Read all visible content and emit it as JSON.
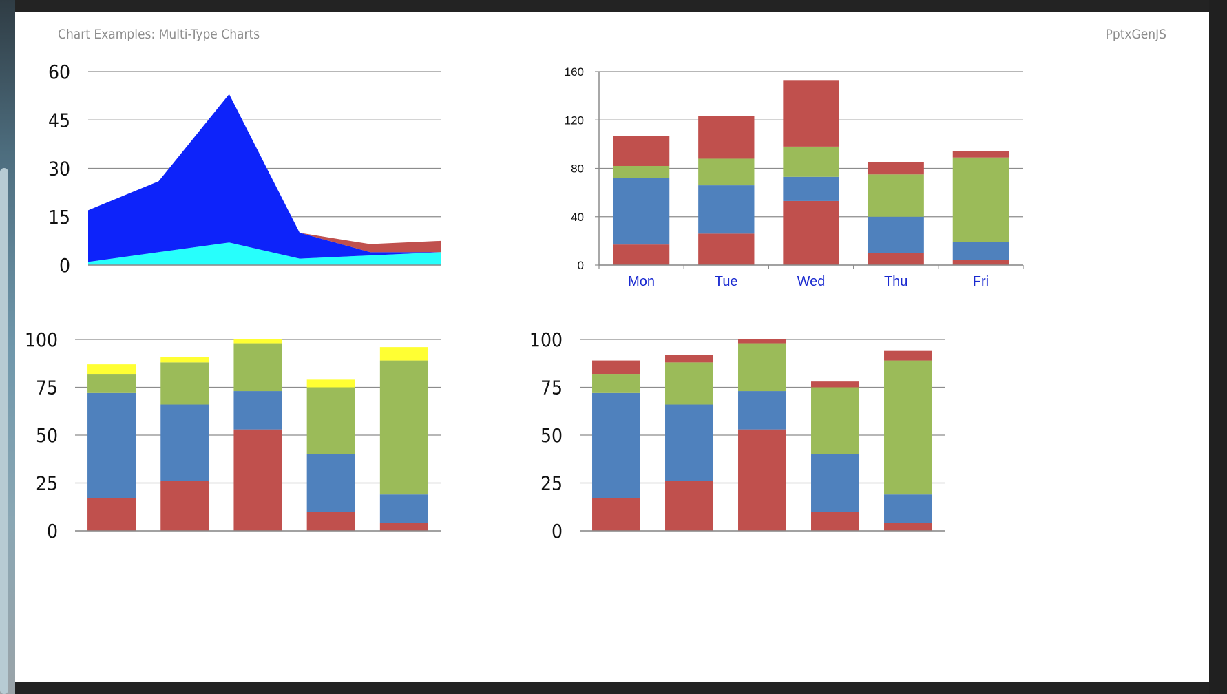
{
  "slide": {
    "title": "Chart Examples: Multi-Type Charts",
    "brand": "PptxGenJS"
  },
  "colors": {
    "red": "#c0504d",
    "blue": "#4f81bd",
    "green": "#9bbb59",
    "yellow": "#ffff33",
    "area_blue": "#0d23fa",
    "area_cyan": "#27fffc",
    "grid": "#8c8c8c",
    "tick_label_blue": "#1a2ad0"
  },
  "chart_data": [
    {
      "type": "area",
      "ylim": [
        0,
        60
      ],
      "y_ticks": [
        "0",
        "15",
        "30",
        "45",
        "60"
      ],
      "grid": true,
      "stacked": true,
      "series": [
        {
          "values": [
            1,
            4,
            7,
            2,
            3,
            4
          ],
          "color": "#27fffc"
        },
        {
          "values": [
            16,
            22,
            46,
            8,
            1,
            0
          ],
          "color": "#0d23fa"
        },
        {
          "values": [
            0,
            0,
            0,
            0,
            2.5,
            3.5
          ],
          "color": "#c0504d"
        }
      ]
    },
    {
      "type": "bar",
      "stacked": true,
      "categories": [
        "Mon",
        "Tue",
        "Wed",
        "Thu",
        "Fri"
      ],
      "ylim": [
        0,
        160
      ],
      "y_ticks": [
        "0",
        "40",
        "80",
        "120",
        "160"
      ],
      "grid": true,
      "series": [
        {
          "values": [
            17,
            26,
            53,
            10,
            4
          ],
          "color": "#c0504d"
        },
        {
          "values": [
            55,
            40,
            20,
            30,
            15
          ],
          "color": "#4f81bd"
        },
        {
          "values": [
            10,
            22,
            25,
            35,
            70
          ],
          "color": "#9bbb59"
        },
        {
          "values": [
            25,
            35,
            55,
            10,
            5
          ],
          "color": "#c0504d"
        }
      ]
    },
    {
      "type": "bar",
      "stacked": true,
      "categories": [
        "",
        "",
        "",
        "",
        ""
      ],
      "ylim": [
        0,
        100
      ],
      "y_ticks": [
        "0",
        "25",
        "50",
        "75",
        "100"
      ],
      "grid": true,
      "series": [
        {
          "values": [
            17,
            26,
            53,
            10,
            4
          ],
          "color": "#c0504d"
        },
        {
          "values": [
            55,
            40,
            20,
            30,
            15
          ],
          "color": "#4f81bd"
        },
        {
          "values": [
            10,
            22,
            25,
            35,
            70
          ],
          "color": "#9bbb59"
        },
        {
          "values": [
            5,
            3,
            2,
            4,
            7
          ],
          "color": "#ffff33"
        }
      ]
    },
    {
      "type": "bar",
      "stacked": true,
      "categories": [
        "",
        "",
        "",
        "",
        ""
      ],
      "ylim": [
        0,
        100
      ],
      "y_ticks": [
        "0",
        "25",
        "50",
        "75",
        "100"
      ],
      "grid": true,
      "series": [
        {
          "values": [
            17,
            26,
            53,
            10,
            4
          ],
          "color": "#c0504d"
        },
        {
          "values": [
            55,
            40,
            20,
            30,
            15
          ],
          "color": "#4f81bd"
        },
        {
          "values": [
            10,
            22,
            25,
            35,
            70
          ],
          "color": "#9bbb59"
        },
        {
          "values": [
            7,
            4,
            2,
            3,
            5
          ],
          "color": "#c0504d"
        }
      ]
    }
  ]
}
